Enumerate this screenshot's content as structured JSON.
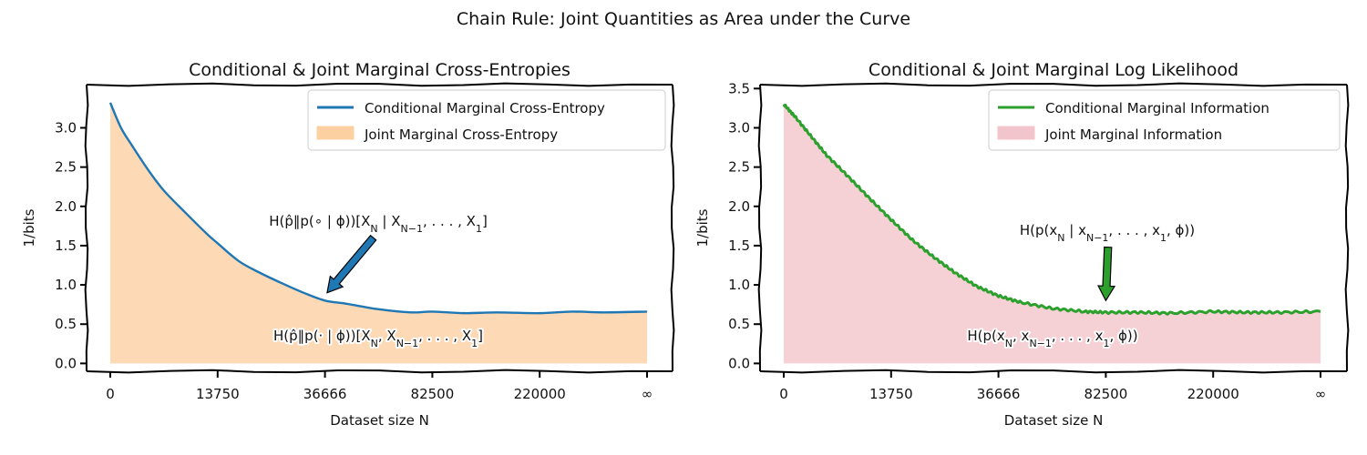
{
  "figure_title": "Chain Rule: Joint Quantities as Area under the Curve",
  "chart_data": [
    {
      "type": "area",
      "title": "Conditional & Joint Marginal Cross-Entropies",
      "xlabel": "Dataset size N",
      "ylabel": "1/bits",
      "ylim": [
        -0.1,
        3.55
      ],
      "yticks": [
        0.0,
        0.5,
        1.0,
        1.5,
        2.0,
        2.5,
        3.0
      ],
      "ytick_labels": [
        "0.0",
        "0.5",
        "1.0",
        "1.5",
        "2.0",
        "2.5",
        "3.0"
      ],
      "xticks": [
        0,
        1,
        2,
        3,
        4,
        5
      ],
      "xtick_labels": [
        "0",
        "13750",
        "36666",
        "82500",
        "220000",
        "∞"
      ],
      "grid": false,
      "legend_position": "top-right",
      "series": [
        {
          "name": "Conditional Marginal Cross-Entropy",
          "role": "line",
          "color": "#1f77b4",
          "x": [
            0,
            0.1,
            0.2,
            0.35,
            0.5,
            0.7,
            0.9,
            1.0,
            1.2,
            1.4,
            1.6,
            1.8,
            2.0,
            2.2,
            2.5,
            2.8,
            3.0,
            3.3,
            3.6,
            4.0,
            4.3,
            4.6,
            5.0
          ],
          "values": [
            3.32,
            3.0,
            2.78,
            2.47,
            2.2,
            1.92,
            1.65,
            1.53,
            1.3,
            1.15,
            1.02,
            0.9,
            0.8,
            0.76,
            0.69,
            0.65,
            0.66,
            0.64,
            0.65,
            0.64,
            0.66,
            0.65,
            0.66
          ]
        },
        {
          "name": "Joint Marginal Cross-Entropy",
          "role": "fill",
          "color": "#fdd0a2"
        }
      ],
      "annotations": [
        {
          "text": "H(p̂‖p(∘ | ϕ))[X_N | X_N−1, . . . , X_1]",
          "color": "#1f77b4",
          "arrow_to": [
            2.02,
            0.9
          ],
          "arrow_from": [
            2.45,
            1.6
          ]
        },
        {
          "text": "H(p̂‖p(· | ϕ))[X_N, X_N−1, . . . , X_1]",
          "color": "#111111"
        }
      ]
    },
    {
      "type": "area",
      "title": "Conditional & Joint Marginal Log Likelihood",
      "xlabel": "Dataset size N",
      "ylabel": "1/bits",
      "ylim": [
        -0.1,
        3.55
      ],
      "yticks": [
        0.0,
        0.5,
        1.0,
        1.5,
        2.0,
        2.5,
        3.0,
        3.5
      ],
      "ytick_labels": [
        "0.0",
        "0.5",
        "1.0",
        "1.5",
        "2.0",
        "2.5",
        "3.0",
        "3.5"
      ],
      "xticks": [
        0,
        1,
        2,
        3,
        4,
        5
      ],
      "xtick_labels": [
        "0",
        "13750",
        "36666",
        "82500",
        "220000",
        "∞"
      ],
      "grid": false,
      "legend_position": "top-right",
      "series": [
        {
          "name": "Conditional Marginal Information",
          "role": "line",
          "color": "#2ca02c",
          "x": [
            0,
            0.1,
            0.25,
            0.4,
            0.6,
            0.8,
            1.0,
            1.2,
            1.4,
            1.6,
            1.8,
            2.0,
            2.2,
            2.5,
            2.8,
            3.0,
            3.3,
            3.6,
            4.0,
            4.3,
            4.6,
            5.0
          ],
          "values": [
            3.3,
            3.15,
            2.9,
            2.65,
            2.38,
            2.1,
            1.83,
            1.57,
            1.35,
            1.15,
            0.98,
            0.86,
            0.78,
            0.7,
            0.66,
            0.65,
            0.65,
            0.64,
            0.66,
            0.65,
            0.65,
            0.66
          ]
        },
        {
          "name": "Joint Marginal Information",
          "role": "fill",
          "color": "#f2c4cb"
        }
      ],
      "annotations": [
        {
          "text": "H(p(x_N | x_N−1, . . . , x_1, ϕ))",
          "color": "#2ca02c",
          "arrow_to": [
            3.0,
            0.8
          ],
          "arrow_from": [
            3.02,
            1.48
          ]
        },
        {
          "text": "H(p(x_N, x_N−1, . . . , x_1, ϕ))",
          "color": "#111111"
        }
      ]
    }
  ]
}
